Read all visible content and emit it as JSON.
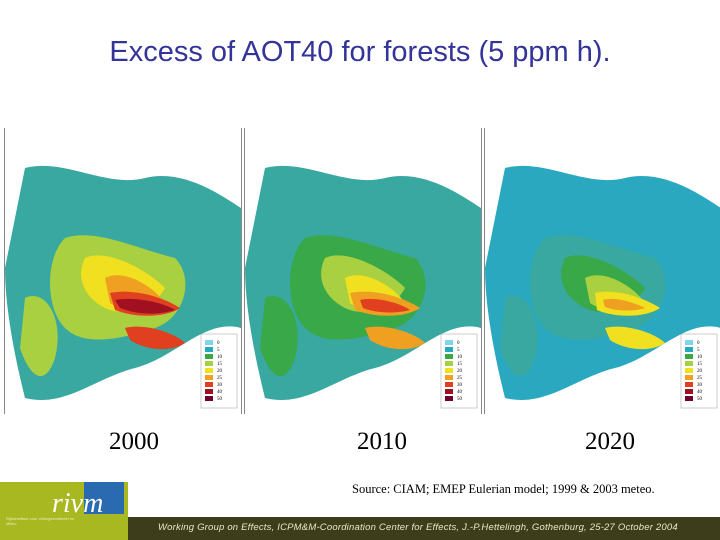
{
  "title": "Excess of AOT40 for forests (5 ppm h).",
  "maps": [
    {
      "year": "2000"
    },
    {
      "year": "2010"
    },
    {
      "year": "2020"
    }
  ],
  "legend_values": [
    "0",
    "5",
    "10",
    "15",
    "20",
    "25",
    "30",
    "40",
    "50"
  ],
  "legend_colors": [
    "#ffffff",
    "#7fd6e8",
    "#2aa8c0",
    "#38a848",
    "#a8d040",
    "#f0e020",
    "#f0a020",
    "#e04020",
    "#a01020",
    "#700030"
  ],
  "source": "Source: CIAM; EMEP Eulerian model; 1999 & 2003 meteo.",
  "footer": "Working Group on Effects, ICPM&M-Coordination Center for Effects, J.-P.Hettelingh, Gothenburg, 25-27 October 2004",
  "logo": {
    "word": "rivm",
    "subtext": "Rijksinstituut voor Volksgezondheid en Milieu"
  }
}
